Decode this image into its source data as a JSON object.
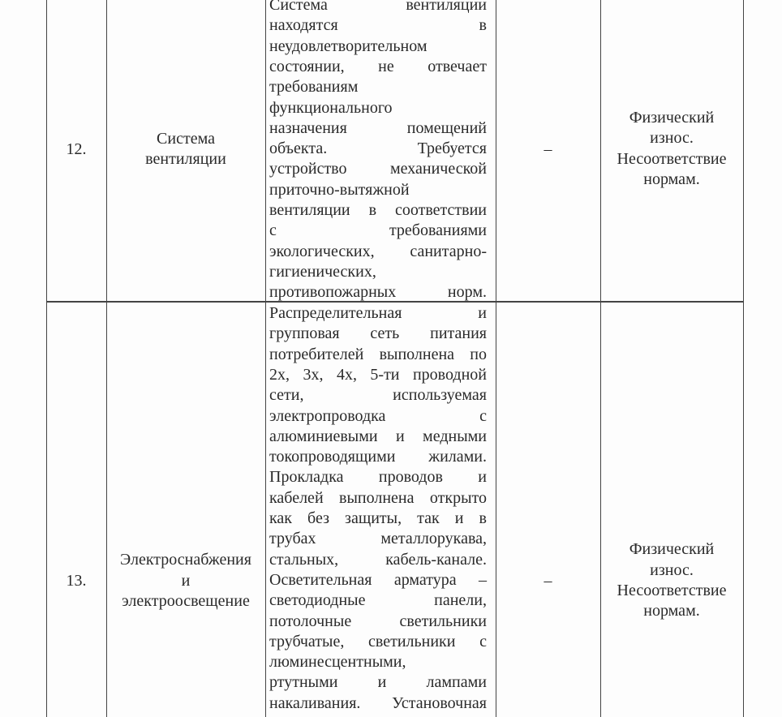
{
  "table": {
    "rows": [
      {
        "number": "12.",
        "name_lines": [
          "Система",
          "вентиляции"
        ],
        "description_lines": [
          "Система вентиляции",
          "находятся в",
          "неудовлетворительном",
          "состоянии, не отвечает",
          "требованиям",
          "функционального",
          "назначения помещений",
          "объекта. Требуется",
          "устройство механической",
          "приточно-вытяжной",
          "вентиляции в соответствии",
          "с требованиями",
          "экологических, санитарно-",
          "гигиенических,",
          "противопожарных норм."
        ],
        "value": "–",
        "conclusion_lines": [
          "Физический",
          "износ.",
          "Несоответствие",
          "нормам."
        ]
      },
      {
        "number": "13.",
        "name_lines": [
          "Электроснабжения",
          "и",
          "электроосвещение"
        ],
        "description_lines": [
          "Распределительная и",
          "групповая сеть питания",
          "потребителей выполнена по",
          "2х, 3х, 4х, 5-ти проводной",
          "сети, используемая",
          "электропроводка с",
          "алюминиевыми и медными",
          "токопроводящими жилами.",
          "Прокладка проводов и",
          "кабелей выполнена открыто",
          "как без защиты, так и в",
          "трубах металлорукава,",
          "стальных, кабель-канале.",
          "Осветительная арматура –",
          "светодиодные панели,",
          "потолочные светильники",
          "трубчатые, светильники с",
          "люминесцентными,",
          "ртутными и лампами",
          "накаливания. Установочная"
        ],
        "value": "–",
        "conclusion_lines": [
          "Физический",
          "износ.",
          "Несоответствие",
          "нормам."
        ]
      }
    ]
  }
}
